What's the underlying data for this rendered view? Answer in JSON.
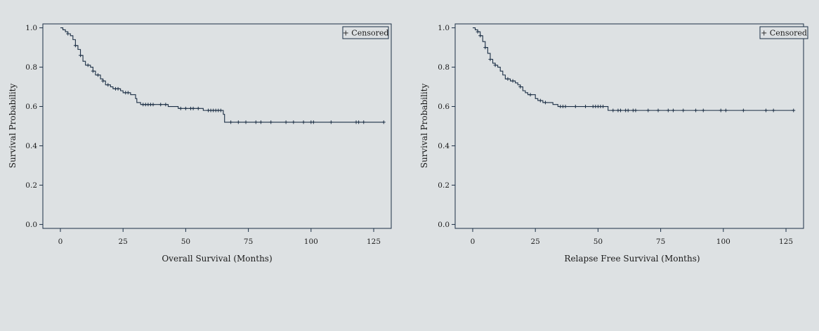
{
  "chart_data": [
    {
      "type": "line",
      "title": "",
      "xlabel": "Overall Survival (Months)",
      "ylabel": "Survival Probability",
      "xlim": [
        -7,
        132
      ],
      "ylim": [
        -0.02,
        1.02
      ],
      "xticks": [
        0,
        25,
        50,
        75,
        100,
        125
      ],
      "yticks": [
        0.0,
        0.2,
        0.4,
        0.6,
        0.8,
        1.0
      ],
      "xtick_labels": [
        "0",
        "25",
        "50",
        "75",
        "100",
        "125"
      ],
      "ytick_labels": [
        "0.0",
        "0.2",
        "0.4",
        "0.6",
        "0.8",
        "1.0"
      ],
      "legend": {
        "entries": [
          "+ Censored"
        ],
        "placement": "top-right"
      },
      "grid": false,
      "line_color": "#1c2f45",
      "series": [
        {
          "steps": [
            [
              0,
              1.0
            ],
            [
              1,
              0.99
            ],
            [
              2,
              0.98
            ],
            [
              3,
              0.97
            ],
            [
              4,
              0.96
            ],
            [
              5,
              0.94
            ],
            [
              6,
              0.91
            ],
            [
              7,
              0.89
            ],
            [
              8,
              0.86
            ],
            [
              9,
              0.83
            ],
            [
              10,
              0.81
            ],
            [
              12,
              0.8
            ],
            [
              13,
              0.78
            ],
            [
              14,
              0.76
            ],
            [
              16,
              0.74
            ],
            [
              17,
              0.73
            ],
            [
              18,
              0.71
            ],
            [
              20,
              0.7
            ],
            [
              21,
              0.69
            ],
            [
              24,
              0.68
            ],
            [
              25,
              0.67
            ],
            [
              28,
              0.66
            ],
            [
              30,
              0.64
            ],
            [
              30.5,
              0.62
            ],
            [
              32,
              0.61
            ],
            [
              43,
              0.6
            ],
            [
              47,
              0.59
            ],
            [
              57,
              0.58
            ],
            [
              65,
              0.56
            ],
            [
              65.5,
              0.52
            ],
            [
              129,
              0.52
            ]
          ],
          "censored": [
            [
              3,
              0.97
            ],
            [
              6,
              0.91
            ],
            [
              8,
              0.86
            ],
            [
              11,
              0.81
            ],
            [
              13,
              0.78
            ],
            [
              15,
              0.76
            ],
            [
              17,
              0.73
            ],
            [
              19,
              0.71
            ],
            [
              22,
              0.69
            ],
            [
              23,
              0.69
            ],
            [
              26,
              0.67
            ],
            [
              27,
              0.67
            ],
            [
              33,
              0.61
            ],
            [
              34,
              0.61
            ],
            [
              35,
              0.61
            ],
            [
              36,
              0.61
            ],
            [
              37,
              0.61
            ],
            [
              40,
              0.61
            ],
            [
              42,
              0.61
            ],
            [
              48,
              0.59
            ],
            [
              50,
              0.59
            ],
            [
              52,
              0.59
            ],
            [
              53,
              0.59
            ],
            [
              55,
              0.59
            ],
            [
              59,
              0.58
            ],
            [
              60,
              0.58
            ],
            [
              61,
              0.58
            ],
            [
              62,
              0.58
            ],
            [
              63,
              0.58
            ],
            [
              64,
              0.58
            ],
            [
              68,
              0.52
            ],
            [
              71,
              0.52
            ],
            [
              74,
              0.52
            ],
            [
              78,
              0.52
            ],
            [
              80,
              0.52
            ],
            [
              84,
              0.52
            ],
            [
              90,
              0.52
            ],
            [
              93,
              0.52
            ],
            [
              97,
              0.52
            ],
            [
              100,
              0.52
            ],
            [
              101,
              0.52
            ],
            [
              108,
              0.52
            ],
            [
              118,
              0.52
            ],
            [
              119,
              0.52
            ],
            [
              121,
              0.52
            ],
            [
              129,
              0.52
            ]
          ]
        }
      ]
    },
    {
      "type": "line",
      "title": "",
      "xlabel": "Relapse Free Survival (Months)",
      "ylabel": "Survival Probability",
      "xlim": [
        -7,
        132
      ],
      "ylim": [
        -0.02,
        1.02
      ],
      "xticks": [
        0,
        25,
        50,
        75,
        100,
        125
      ],
      "yticks": [
        0.0,
        0.2,
        0.4,
        0.6,
        0.8,
        1.0
      ],
      "xtick_labels": [
        "0",
        "25",
        "50",
        "75",
        "100",
        "125"
      ],
      "ytick_labels": [
        "0.0",
        "0.2",
        "0.4",
        "0.6",
        "0.8",
        "1.0"
      ],
      "legend": {
        "entries": [
          "+ Censored"
        ],
        "placement": "top-right"
      },
      "grid": false,
      "line_color": "#1c2f45",
      "series": [
        {
          "steps": [
            [
              0,
              1.0
            ],
            [
              1,
              0.99
            ],
            [
              2,
              0.98
            ],
            [
              3,
              0.96
            ],
            [
              4,
              0.93
            ],
            [
              5,
              0.9
            ],
            [
              6,
              0.87
            ],
            [
              7,
              0.84
            ],
            [
              8,
              0.82
            ],
            [
              9,
              0.81
            ],
            [
              10,
              0.8
            ],
            [
              11,
              0.78
            ],
            [
              12,
              0.76
            ],
            [
              13,
              0.74
            ],
            [
              15,
              0.73
            ],
            [
              17,
              0.72
            ],
            [
              18,
              0.71
            ],
            [
              19,
              0.7
            ],
            [
              20,
              0.68
            ],
            [
              21,
              0.67
            ],
            [
              22,
              0.66
            ],
            [
              25,
              0.64
            ],
            [
              26,
              0.63
            ],
            [
              28,
              0.62
            ],
            [
              32,
              0.61
            ],
            [
              34,
              0.6
            ],
            [
              54,
              0.58
            ],
            [
              128,
              0.58
            ]
          ],
          "censored": [
            [
              2,
              0.98
            ],
            [
              3,
              0.96
            ],
            [
              5,
              0.9
            ],
            [
              7,
              0.84
            ],
            [
              9,
              0.81
            ],
            [
              14,
              0.74
            ],
            [
              16,
              0.73
            ],
            [
              19,
              0.7
            ],
            [
              23,
              0.66
            ],
            [
              27,
              0.63
            ],
            [
              29,
              0.62
            ],
            [
              35,
              0.6
            ],
            [
              36,
              0.6
            ],
            [
              37,
              0.6
            ],
            [
              41,
              0.6
            ],
            [
              45,
              0.6
            ],
            [
              48,
              0.6
            ],
            [
              49,
              0.6
            ],
            [
              50,
              0.6
            ],
            [
              51,
              0.6
            ],
            [
              52,
              0.6
            ],
            [
              56,
              0.58
            ],
            [
              58,
              0.58
            ],
            [
              59,
              0.58
            ],
            [
              61,
              0.58
            ],
            [
              62,
              0.58
            ],
            [
              64,
              0.58
            ],
            [
              65,
              0.58
            ],
            [
              70,
              0.58
            ],
            [
              74,
              0.58
            ],
            [
              78,
              0.58
            ],
            [
              80,
              0.58
            ],
            [
              84,
              0.58
            ],
            [
              89,
              0.58
            ],
            [
              92,
              0.58
            ],
            [
              99,
              0.58
            ],
            [
              101,
              0.58
            ],
            [
              108,
              0.58
            ],
            [
              117,
              0.58
            ],
            [
              120,
              0.58
            ],
            [
              128,
              0.58
            ]
          ]
        }
      ]
    }
  ]
}
